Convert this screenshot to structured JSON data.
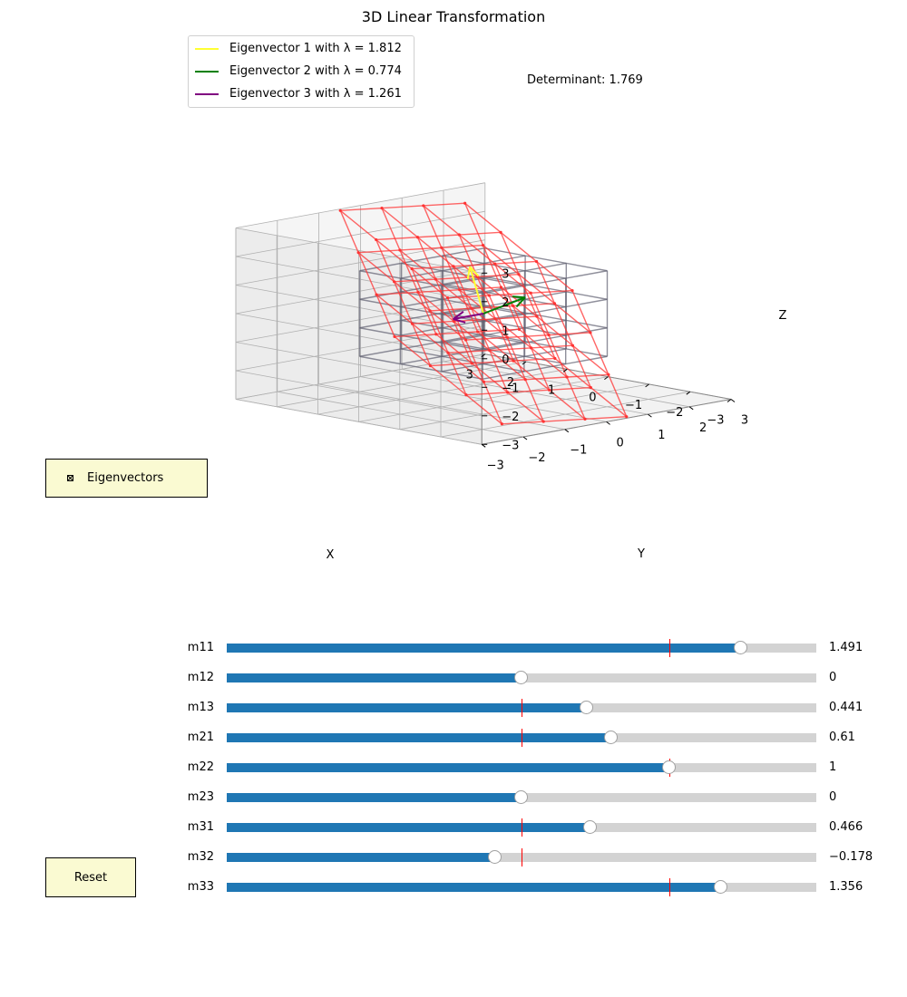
{
  "title": "3D Linear Transformation",
  "determinant_text": "Determinant: 1.769",
  "legend": [
    {
      "label": "Eigenvector 1 with λ = 1.812",
      "color": "#ffff33"
    },
    {
      "label": "Eigenvector 2 with λ = 0.774",
      "color": "#008000"
    },
    {
      "label": "Eigenvector 3 with λ = 1.261",
      "color": "#800080"
    }
  ],
  "axes": {
    "x_label": "X",
    "y_label": "Y",
    "z_label": "Z",
    "x_ticks": [
      "3",
      "2",
      "1",
      "0",
      "−1",
      "−2",
      "−3"
    ],
    "y_ticks": [
      "3",
      "2",
      "1",
      "0",
      "−1",
      "−2",
      "−3"
    ],
    "z_ticks": [
      "3",
      "2",
      "1",
      "0",
      "−1",
      "−2",
      "−3"
    ],
    "range": [
      -3,
      3
    ]
  },
  "eigen_toggle": {
    "label": "Eigenvectors",
    "checked": true
  },
  "reset_label": "Reset",
  "sliders": [
    {
      "label": "m11",
      "value": 1.491,
      "value_text": "1.491",
      "initial": 1,
      "min": -2,
      "max": 2
    },
    {
      "label": "m12",
      "value": 0,
      "value_text": "0",
      "initial": 0,
      "min": -2,
      "max": 2
    },
    {
      "label": "m13",
      "value": 0.441,
      "value_text": "0.441",
      "initial": 0,
      "min": -2,
      "max": 2
    },
    {
      "label": "m21",
      "value": 0.61,
      "value_text": "0.61",
      "initial": 0,
      "min": -2,
      "max": 2
    },
    {
      "label": "m22",
      "value": 1,
      "value_text": "1",
      "initial": 1,
      "min": -2,
      "max": 2
    },
    {
      "label": "m23",
      "value": 0,
      "value_text": "0",
      "initial": 0,
      "min": -2,
      "max": 2
    },
    {
      "label": "m31",
      "value": 0.466,
      "value_text": "0.466",
      "initial": 0,
      "min": -2,
      "max": 2
    },
    {
      "label": "m32",
      "value": -0.178,
      "value_text": "−0.178",
      "initial": 0,
      "min": -2,
      "max": 2
    },
    {
      "label": "m33",
      "value": 1.356,
      "value_text": "1.356",
      "initial": 1,
      "min": -2,
      "max": 2
    }
  ],
  "colors": {
    "original_grid": "#606070",
    "transformed_grid": "#ff3333",
    "slider_fill": "#1f77b4",
    "button_bg": "#fafad2"
  }
}
